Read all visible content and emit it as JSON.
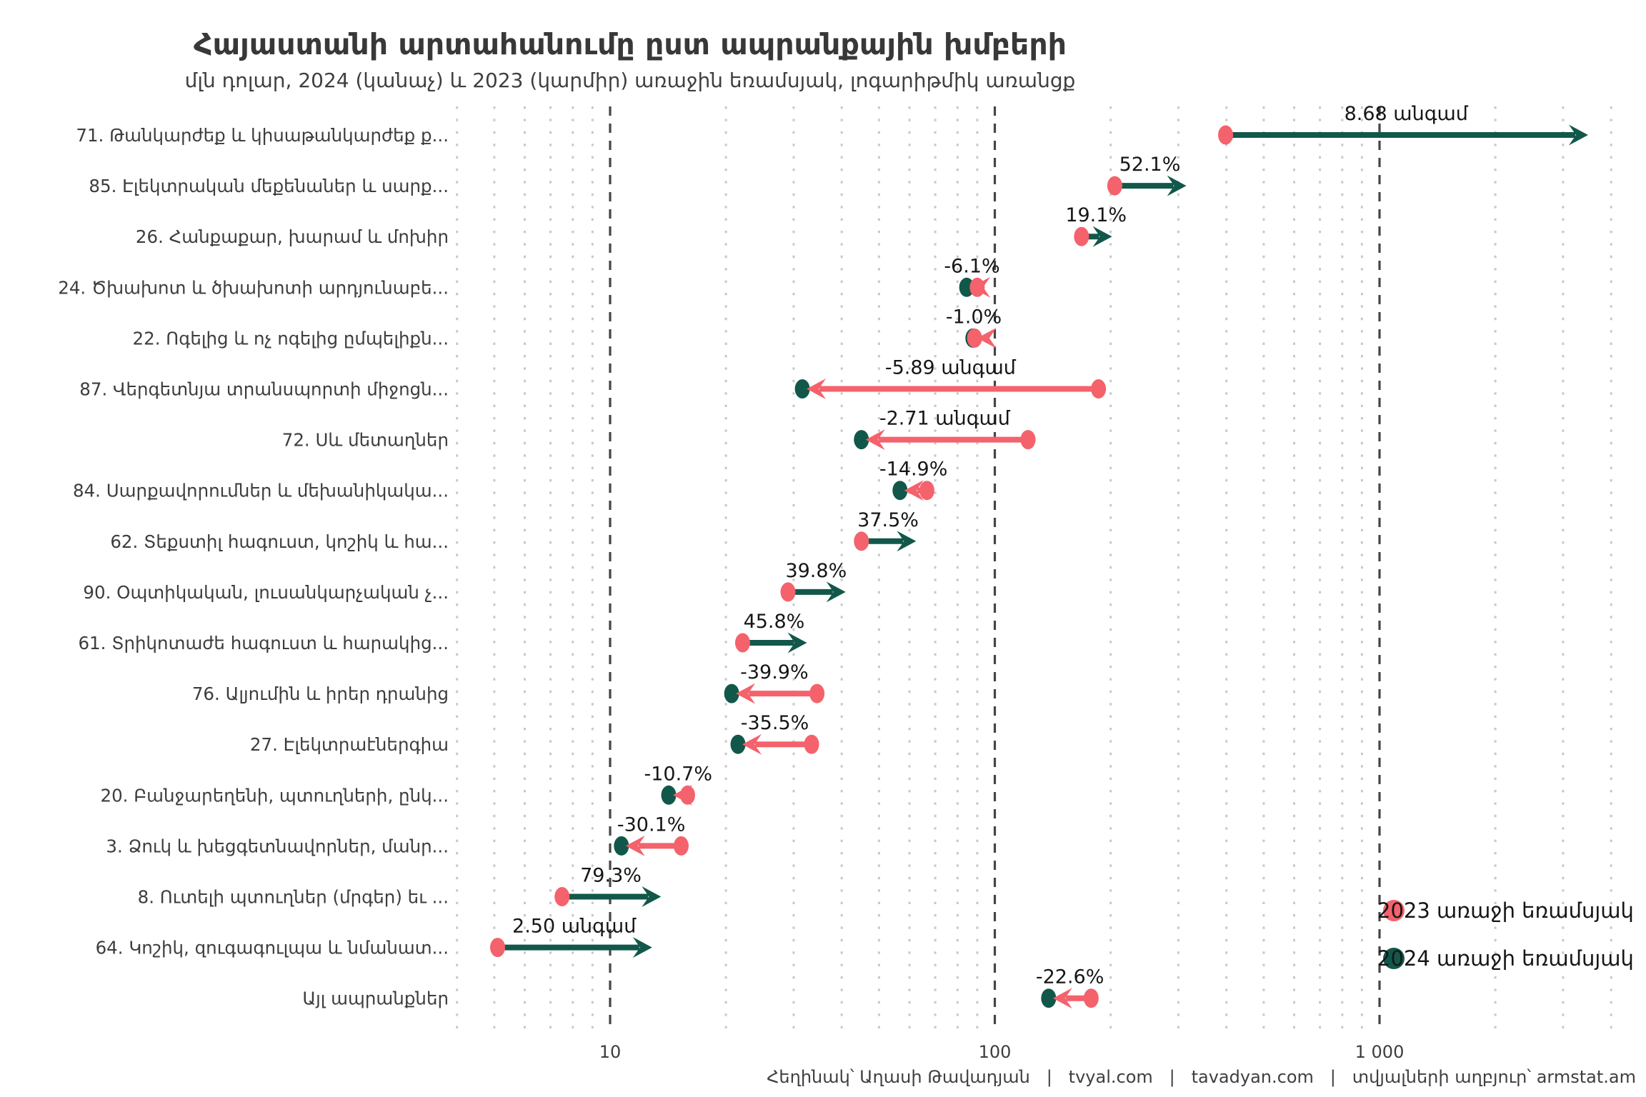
{
  "header": {
    "title": "Հայաստանի արտահանումը ըստ ապրանքային խմբերի",
    "subtitle": "մլն դոլար, 2024 (կանաչ) և 2023 (կարմիր) առաջին եռամսյակ, լոգարիթմիկ առանցք"
  },
  "footer": {
    "text": "Հեղինակ՝ Աղասի Թավադյան   |   tvyal.com   |   tavadyan.com   |   տվյալների աղբյուր՝ armstat.am"
  },
  "legend": {
    "items": [
      {
        "label": "2023 առաջի եռամսյակ",
        "color": "#F4626C"
      },
      {
        "label": "2024 առաջի եռամսյակ",
        "color": "#11584A"
      }
    ]
  },
  "colors": {
    "red_2023": "#F4626C",
    "green_2024": "#11584A",
    "major_grid": "#454545",
    "minor_grid": "#c8c8c8",
    "text_dark": "#161616",
    "text_label": "#3d3d3d"
  },
  "chart_data": {
    "type": "dumbbell-arrow",
    "title": "Հայաստանի արտահանումը ըստ ապրանքային խմբերի",
    "subtitle": "մլն դոլար, 2024 (կանաչ) և 2023 (կարմիր) առաջին եռամսյակ, լոգարիթմիկ առանցք",
    "x_axis": {
      "scale": "log10",
      "unit": "մլն դոլար",
      "range": [
        4,
        4000
      ],
      "ticks": [
        10,
        100,
        1000
      ],
      "tick_labels": [
        "10",
        "100",
        "1 000"
      ],
      "minor_gridlines": [
        4,
        5,
        6,
        7,
        8,
        9,
        20,
        30,
        40,
        50,
        60,
        70,
        80,
        90,
        200,
        300,
        400,
        500,
        600,
        700,
        800,
        900,
        2000,
        3000,
        4000
      ],
      "grid": true
    },
    "series_names": [
      "2023 առաջի եռամսյակ",
      "2024 առաջի եռամսյակ"
    ],
    "rows": [
      {
        "label": "71. Թանկարժեք և կիսաթանկարժեք ք...",
        "v2023": 398,
        "v2024": 3455,
        "change": "8.68 անգամ"
      },
      {
        "label": "85. Էլեկտրական մեքենաներ և սարք...",
        "v2023": 205,
        "v2024": 312,
        "change": "52.1%"
      },
      {
        "label": "26. Հանքաքար, խարամ և մոխիր",
        "v2023": 168,
        "v2024": 200,
        "change": "19.1%"
      },
      {
        "label": "24. Ծխախոտ և ծխախոտի արդյունաբե...",
        "v2023": 90,
        "v2024": 84.5,
        "change": "-6.1%"
      },
      {
        "label": "22. Ոգելից և ոչ ոգելից ըմպելիքն...",
        "v2023": 88.6,
        "v2024": 87.7,
        "change": "-1.0%"
      },
      {
        "label": "87. Վերգետնյա տրանսպորտի միջոցն...",
        "v2023": 186,
        "v2024": 31.6,
        "change": "-5.89 անգամ"
      },
      {
        "label": "72. Սև մետաղներ",
        "v2023": 122,
        "v2024": 45,
        "change": "-2.71 անգամ"
      },
      {
        "label": "84. Սարքավորումներ և մեխանիկակա...",
        "v2023": 66.6,
        "v2024": 56.7,
        "change": "-14.9%"
      },
      {
        "label": "62. Տեքստիլ հագուստ, կոշիկ և հա...",
        "v2023": 45,
        "v2024": 61.9,
        "change": "37.5%"
      },
      {
        "label": "90. Օպտիկական, լուսանկարչական չ...",
        "v2023": 29,
        "v2024": 40.6,
        "change": "39.8%"
      },
      {
        "label": "61. Տրիկոտաժե հագուստ և հարակից...",
        "v2023": 22.1,
        "v2024": 32.2,
        "change": "45.8%"
      },
      {
        "label": "76. Ալյումին և իրեր դրանից",
        "v2023": 34.5,
        "v2024": 20.7,
        "change": "-39.9%"
      },
      {
        "label": "27. Էլեկտրաէներգիա",
        "v2023": 33.4,
        "v2024": 21.5,
        "change": "-35.5%"
      },
      {
        "label": "20. Բանջարեղենի, պտուղների, ընկ...",
        "v2023": 15.9,
        "v2024": 14.2,
        "change": "-10.7%"
      },
      {
        "label": "3. Ձուկ և խեցգետնավորներ, մանր...",
        "v2023": 15.3,
        "v2024": 10.7,
        "change": "-30.1%"
      },
      {
        "label": "8. Ուտելի պտուղներ (մրգեր) եւ ...",
        "v2023": 7.5,
        "v2024": 13.45,
        "change": "79.3%"
      },
      {
        "label": "64. Կոշիկ, զուգագուլպա և նմանատ...",
        "v2023": 5.1,
        "v2024": 12.75,
        "change": "2.50 անգամ"
      },
      {
        "label": "Այլ ապրանքներ",
        "v2023": 178,
        "v2024": 138,
        "change": "-22.6%"
      }
    ]
  }
}
